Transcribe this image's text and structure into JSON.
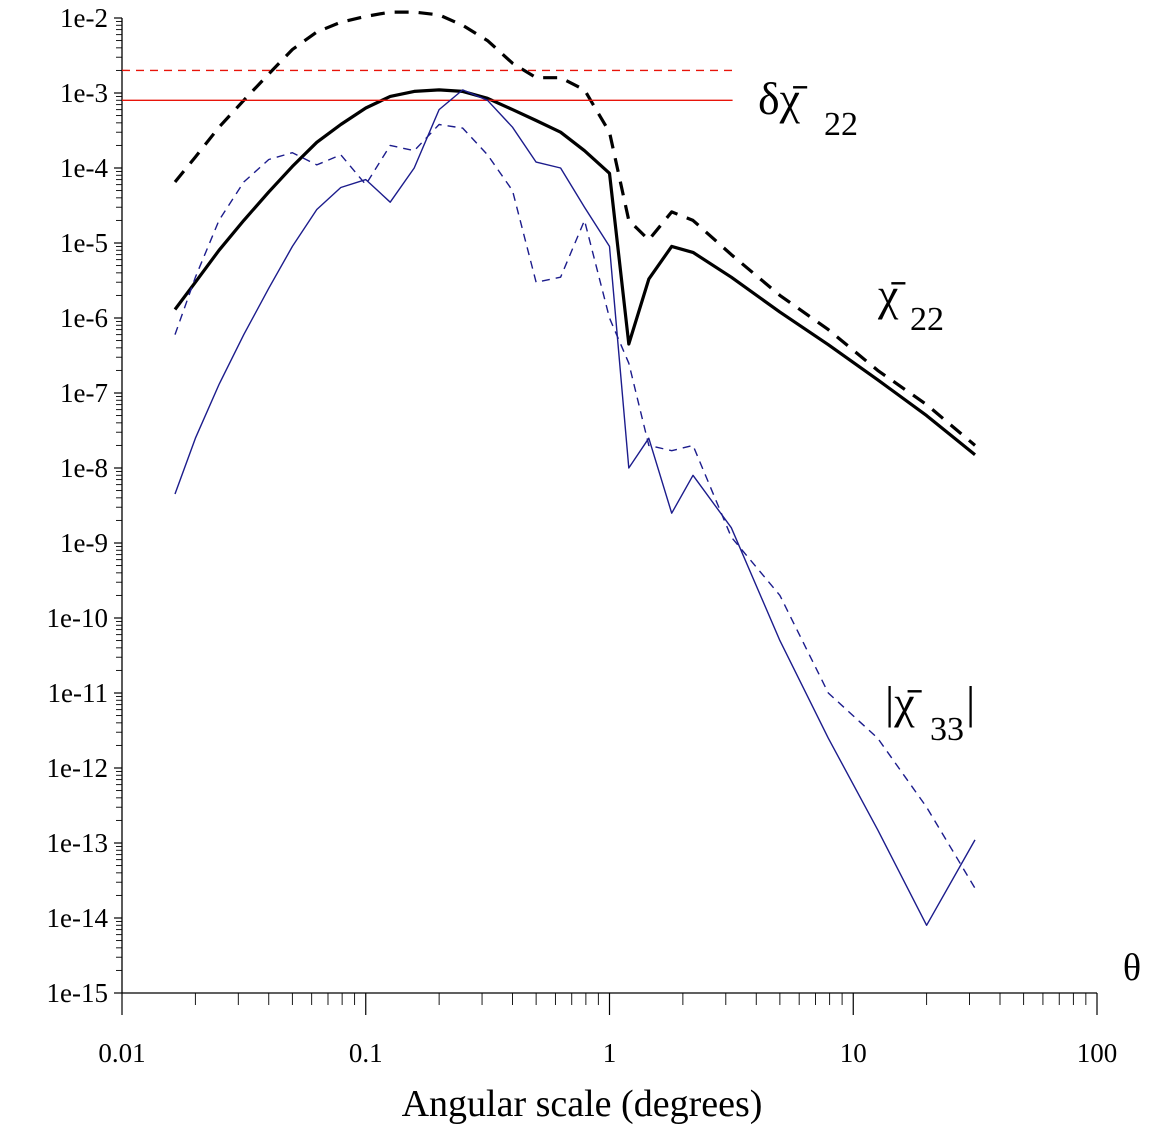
{
  "chart_data": {
    "type": "line",
    "title": "",
    "xlabel": "Angular scale (degrees)",
    "x_axis_symbol": "θ",
    "ylabel": "",
    "xscale": "log",
    "yscale": "log",
    "xlim": [
      0.01,
      100
    ],
    "ylim": [
      1e-15,
      0.01
    ],
    "grid": false,
    "x_tick_labels": [
      "0.01",
      "0.1",
      "1",
      "10",
      "100"
    ],
    "y_tick_labels": [
      "1e-2",
      "1e-3",
      "1e-4",
      "1e-5",
      "1e-6",
      "1e-7",
      "1e-8",
      "1e-9",
      "1e-10",
      "1e-11",
      "1e-12",
      "1e-13",
      "1e-14",
      "1e-15"
    ],
    "annotations": [
      {
        "text": "δχ̄",
        "sub": "22",
        "near": "upper right of horizontal lines"
      },
      {
        "text": "χ̄",
        "sub": "22",
        "near": "right of black curves"
      },
      {
        "text": "|χ̄",
        "sub": "33",
        "suffix": "|",
        "near": "right of blue curves"
      }
    ],
    "series": [
      {
        "id": "chi22_solid",
        "color": "#000000",
        "dash": "solid",
        "weight": "thick",
        "x": [
          0.0165,
          0.02,
          0.025,
          0.0316,
          0.04,
          0.05,
          0.063,
          0.079,
          0.1,
          0.126,
          0.158,
          0.2,
          0.25,
          0.316,
          0.4,
          0.5,
          0.63,
          0.79,
          1.0,
          1.2,
          1.45,
          1.8,
          2.2,
          3.16,
          5.0,
          7.9,
          12.6,
          20,
          31.6
        ],
        "y": [
          1.3e-06,
          3e-06,
          8e-06,
          2e-05,
          4.8e-05,
          0.000105,
          0.00022,
          0.00038,
          0.00063,
          0.0009,
          0.00105,
          0.0011,
          0.00105,
          0.00085,
          0.0006,
          0.00043,
          0.0003,
          0.00017,
          8.5e-05,
          4.5e-07,
          3.3e-06,
          9e-06,
          7.5e-06,
          3.5e-06,
          1.2e-06,
          4.4e-07,
          1.5e-07,
          5e-08,
          1.5e-08
        ]
      },
      {
        "id": "chi22_dashed",
        "color": "#000000",
        "dash": "dashed",
        "weight": "thick",
        "x": [
          0.0165,
          0.02,
          0.025,
          0.0316,
          0.04,
          0.05,
          0.063,
          0.079,
          0.1,
          0.126,
          0.158,
          0.2,
          0.25,
          0.316,
          0.4,
          0.5,
          0.63,
          0.79,
          1.0,
          1.2,
          1.45,
          1.8,
          2.2,
          3.16,
          5.0,
          7.9,
          12.6,
          20,
          31.6
        ],
        "y": [
          6.5e-05,
          0.00014,
          0.00035,
          0.0008,
          0.0018,
          0.0038,
          0.0065,
          0.0088,
          0.0105,
          0.012,
          0.012,
          0.011,
          0.008,
          0.005,
          0.0025,
          0.0016,
          0.0016,
          0.0011,
          0.0003,
          2e-05,
          1.1e-05,
          2.6e-05,
          2e-05,
          7e-06,
          2e-06,
          7e-07,
          2e-07,
          7e-08,
          2e-08
        ]
      },
      {
        "id": "delta_chi22_solid",
        "color": "#e8140a",
        "dash": "solid",
        "weight": "thin",
        "x": [
          0.01,
          3.2
        ],
        "y": [
          0.0008,
          0.0008
        ]
      },
      {
        "id": "delta_chi22_dashed",
        "color": "#e8140a",
        "dash": "dashed",
        "weight": "thin",
        "x": [
          0.01,
          3.2
        ],
        "y": [
          0.002,
          0.002
        ]
      },
      {
        "id": "chi33_solid",
        "color": "#1c1c8c",
        "dash": "solid",
        "weight": "thin",
        "x": [
          0.0165,
          0.02,
          0.025,
          0.0316,
          0.04,
          0.05,
          0.063,
          0.079,
          0.1,
          0.126,
          0.158,
          0.2,
          0.25,
          0.316,
          0.4,
          0.5,
          0.63,
          0.79,
          1.0,
          1.2,
          1.45,
          1.8,
          2.2,
          3.16,
          5.0,
          7.9,
          12.6,
          20,
          31.6
        ],
        "y": [
          4.5e-09,
          2.5e-08,
          1.3e-07,
          6e-07,
          2.5e-06,
          9e-06,
          2.8e-05,
          5.5e-05,
          7e-05,
          3.5e-05,
          0.0001,
          0.0006,
          0.0011,
          0.0008,
          0.00035,
          0.00012,
          0.0001,
          3e-05,
          9e-06,
          1e-08,
          2.5e-08,
          2.5e-09,
          8e-09,
          1.6e-09,
          5e-11,
          2.5e-12,
          1.5e-13,
          8e-15,
          1.1e-13
        ]
      },
      {
        "id": "chi33_dashed",
        "color": "#1c1c8c",
        "dash": "dashed",
        "weight": "thin",
        "x": [
          0.0165,
          0.02,
          0.025,
          0.0316,
          0.04,
          0.05,
          0.063,
          0.079,
          0.1,
          0.126,
          0.158,
          0.2,
          0.25,
          0.316,
          0.4,
          0.5,
          0.63,
          0.79,
          1.0,
          1.2,
          1.45,
          1.8,
          2.2,
          3.16,
          5.0,
          7.9,
          12.6,
          20,
          31.6
        ],
        "y": [
          6e-07,
          3.5e-06,
          2e-05,
          6.5e-05,
          0.00013,
          0.00016,
          0.00011,
          0.00015,
          6e-05,
          0.0002,
          0.00017,
          0.00038,
          0.00034,
          0.00015,
          5e-05,
          3e-06,
          3.5e-06,
          2e-05,
          1e-06,
          2.5e-07,
          2e-08,
          1.7e-08,
          2e-08,
          1.2e-09,
          2e-10,
          1e-11,
          2.5e-12,
          3e-13,
          2.5e-14
        ]
      }
    ]
  }
}
